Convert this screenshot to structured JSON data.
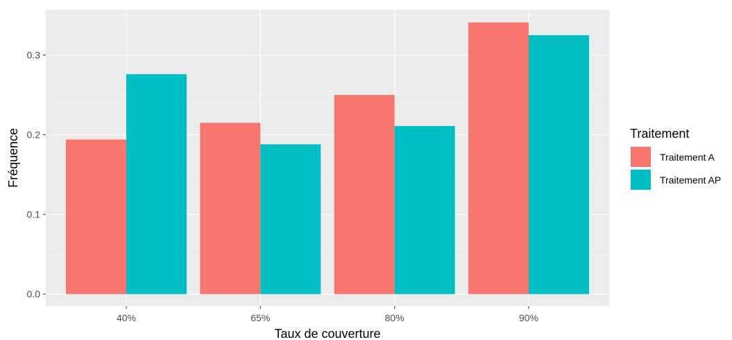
{
  "chart_data": {
    "type": "bar",
    "title": "",
    "xlabel": "Taux de couverture",
    "ylabel": "Fréquence",
    "categories": [
      "40%",
      "65%",
      "80%",
      "90%"
    ],
    "series": [
      {
        "name": "Traitement A",
        "values": [
          0.194,
          0.215,
          0.25,
          0.341
        ],
        "color": "#F8766D"
      },
      {
        "name": "Traitement AP",
        "values": [
          0.276,
          0.188,
          0.211,
          0.325
        ],
        "color": "#00BFC4"
      }
    ],
    "ylim": [
      -0.015,
      0.357
    ],
    "yticks": [
      0.0,
      0.1,
      0.2,
      0.3
    ],
    "ytick_labels": [
      "0.0",
      "0.1",
      "0.2",
      "0.3"
    ],
    "grid": true,
    "panel_background": "#EBEBEB",
    "legend": {
      "title": "Traitement",
      "placement": "right"
    }
  }
}
